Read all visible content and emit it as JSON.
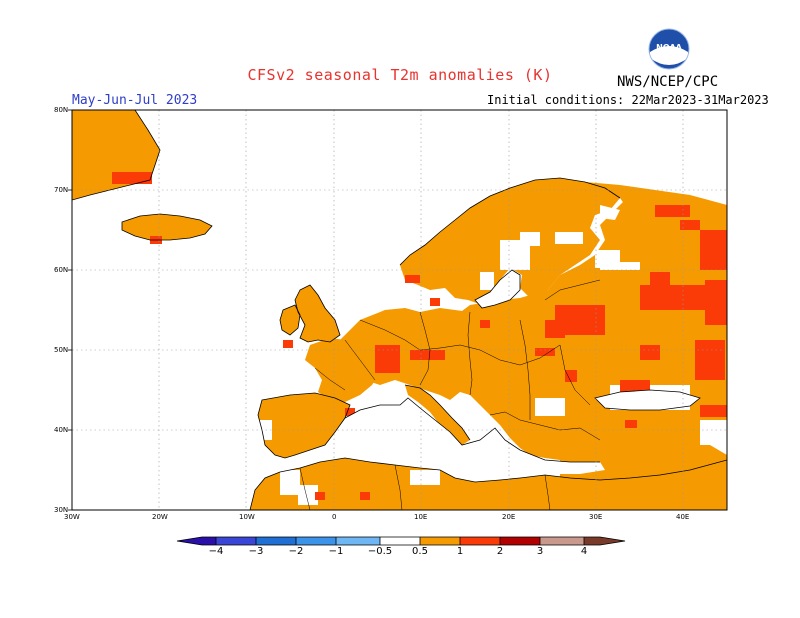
{
  "title": "CFSv2  seasonal  T2m  anomalies  (K)",
  "agency": "NWS/NCEP/CPC",
  "logo_text": "NOAA",
  "period": "May-Jun-Jul 2023",
  "initial_conditions": "Initial conditions: 22Mar2023-31Mar2023",
  "lat_labels": [
    "80N",
    "70N",
    "60N",
    "50N",
    "40N",
    "30N"
  ],
  "lon_labels": [
    "30W",
    "20W",
    "10W",
    "0",
    "10E",
    "20E",
    "30E",
    "40E"
  ],
  "colorbar": {
    "labels": [
      "−4",
      "−3",
      "−2",
      "−1",
      "−0.5",
      "0.5",
      "1",
      "2",
      "3",
      "4"
    ],
    "colors": [
      "#2a10a8",
      "#3a46d6",
      "#1f6fd4",
      "#3b94ea",
      "#6fb6f4",
      "#ffffff",
      "#f59a00",
      "#fa3a07",
      "#b00000",
      "#c8998c",
      "#7a3a2a"
    ]
  },
  "anomaly_colors": {
    "warm_0_5_1": "#f59a00",
    "warm_1_2": "#fa3a07",
    "no_signal": "#ffffff"
  }
}
